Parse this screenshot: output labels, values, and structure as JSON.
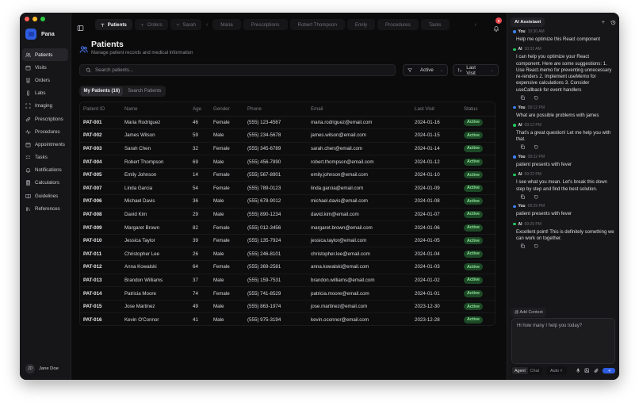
{
  "window": {
    "traffic_lights": {
      "close": "#ff5f57",
      "minimize": "#febc2e",
      "maximize": "#28c840"
    }
  },
  "sidebar": {
    "brand": "Pana",
    "items": [
      {
        "label": "Patients",
        "icon": "users-icon",
        "active": true
      },
      {
        "label": "Visits",
        "icon": "calendar-icon"
      },
      {
        "label": "Orders",
        "icon": "clipboard-icon"
      },
      {
        "label": "Labs",
        "icon": "test-tube-icon"
      },
      {
        "label": "Imaging",
        "icon": "scan-icon"
      },
      {
        "label": "Prescriptions",
        "icon": "pill-icon"
      },
      {
        "label": "Procedures",
        "icon": "activity-icon"
      },
      {
        "label": "Appointments",
        "icon": "calendar-icon"
      },
      {
        "label": "Tasks",
        "icon": "list-checks-icon"
      },
      {
        "label": "Notifications",
        "icon": "bell-icon"
      },
      {
        "label": "Calculators",
        "icon": "calculator-icon"
      },
      {
        "label": "Guidelines",
        "icon": "book-open-icon"
      },
      {
        "label": "References",
        "icon": "library-icon"
      }
    ],
    "user": {
      "initials": "JD",
      "name": "Jane Doe"
    }
  },
  "topbar": {
    "pinned_tabs": [
      {
        "label": "Patients",
        "active": true
      },
      {
        "label": "Orders"
      },
      {
        "label": "Sarah"
      }
    ],
    "tabs": [
      {
        "label": "Maria"
      },
      {
        "label": "Prescriptions"
      },
      {
        "label": "Robert Thompson"
      },
      {
        "label": "Emily"
      },
      {
        "label": "Procedures"
      },
      {
        "label": "Tasks"
      }
    ],
    "notification_count": "8"
  },
  "page": {
    "title": "Patients",
    "subtitle": "Manage patient records and medical information",
    "search_placeholder": "Search patients...",
    "status_filter": "Active",
    "sort_filter": "Last Visit",
    "segments": [
      {
        "label": "My Patients (16)",
        "active": true
      },
      {
        "label": "Search Patients"
      }
    ]
  },
  "table": {
    "columns": [
      "Patient ID",
      "Name",
      "Age",
      "Gender",
      "Phone",
      "Email",
      "Last Visit",
      "Status"
    ],
    "rows": [
      [
        "PAT-001",
        "Maria Rodriguez",
        "46",
        "Female",
        "(555) 123-4567",
        "maria.rodriguez@email.com",
        "2024-01-16",
        "Active"
      ],
      [
        "PAT-002",
        "James Wilson",
        "59",
        "Male",
        "(555) 234-5678",
        "james.wilson@email.com",
        "2024-01-15",
        "Active"
      ],
      [
        "PAT-003",
        "Sarah Chen",
        "32",
        "Female",
        "(555) 345-6789",
        "sarah.chen@email.com",
        "2024-01-14",
        "Active"
      ],
      [
        "PAT-004",
        "Robert Thompson",
        "69",
        "Male",
        "(555) 456-7890",
        "robert.thompson@email.com",
        "2024-01-12",
        "Active"
      ],
      [
        "PAT-005",
        "Emily Johnson",
        "14",
        "Female",
        "(555) 567-8901",
        "emily.johnson@email.com",
        "2024-01-10",
        "Active"
      ],
      [
        "PAT-007",
        "Linda Garcia",
        "54",
        "Female",
        "(555) 789-0123",
        "linda.garcia@email.com",
        "2024-01-09",
        "Active"
      ],
      [
        "PAT-006",
        "Michael Davis",
        "36",
        "Male",
        "(555) 678-9012",
        "michael.davis@email.com",
        "2024-01-08",
        "Active"
      ],
      [
        "PAT-008",
        "David Kim",
        "29",
        "Male",
        "(555) 890-1234",
        "david.kim@email.com",
        "2024-01-07",
        "Active"
      ],
      [
        "PAT-009",
        "Margaret Brown",
        "82",
        "Female",
        "(555) 012-3456",
        "margaret.brown@email.com",
        "2024-01-06",
        "Active"
      ],
      [
        "PAT-010",
        "Jessica Taylor",
        "39",
        "Female",
        "(555) 135-7924",
        "jessica.taylor@email.com",
        "2024-01-05",
        "Active"
      ],
      [
        "PAT-011",
        "Christopher Lee",
        "26",
        "Male",
        "(555) 246-8101",
        "christopher.lee@email.com",
        "2024-01-04",
        "Active"
      ],
      [
        "PAT-012",
        "Anna Kowalski",
        "64",
        "Female",
        "(555) 369-2581",
        "anna.kowalski@email.com",
        "2024-01-03",
        "Active"
      ],
      [
        "PAT-013",
        "Brandon Williams",
        "37",
        "Male",
        "(555) 159-7531",
        "brandon.williams@email.com",
        "2024-01-02",
        "Active"
      ],
      [
        "PAT-014",
        "Patricia Moore",
        "74",
        "Female",
        "(555) 741-8529",
        "patricia.moore@email.com",
        "2024-01-01",
        "Active"
      ],
      [
        "PAT-015",
        "Jose Martinez",
        "49",
        "Male",
        "(555) 863-1974",
        "jose.martinez@email.com",
        "2023-12-30",
        "Active"
      ],
      [
        "PAT-016",
        "Kevin O'Connor",
        "41",
        "Male",
        "(555) 975-3194",
        "kevin.oconnor@email.com",
        "2023-12-28",
        "Active"
      ]
    ]
  },
  "ai": {
    "title": "AI Assistant",
    "messages": [
      {
        "who": "You",
        "time": "10:30 AM",
        "text": "Help me optimize this React component",
        "tools": false
      },
      {
        "who": "AI",
        "time": "10:31 AM",
        "text": "I can help you optimize your React component. Here are some suggestions: 1. Use React.memo for preventing unnecessary re-renders 2. Implement useMemo for expensive calculations 3. Consider useCallback for event handlers",
        "tools": true
      },
      {
        "who": "You",
        "time": "09:12 PM",
        "text": "What are possible problems with james",
        "tools": false
      },
      {
        "who": "AI",
        "time": "09:12 PM",
        "text": "That's a great question! Let me help you with that.",
        "tools": true
      },
      {
        "who": "You",
        "time": "09:22 PM",
        "text": "patient presents with fever",
        "tools": false
      },
      {
        "who": "AI",
        "time": "09:22 PM",
        "text": "I see what you mean. Let's break this down step by step and find the best solution.",
        "tools": true
      },
      {
        "who": "You",
        "time": "09:29 PM",
        "text": "patient presents with fever",
        "tools": false
      },
      {
        "who": "AI",
        "time": "09:29 PM",
        "text": "Excellent point! This is definitely something we can work on together.",
        "tools": true
      }
    ],
    "add_context": "@ Add Context",
    "composer_placeholder": "Hi how many I help you today?",
    "modes": [
      "Agent",
      "Chat"
    ],
    "active_mode": "Agent",
    "model": "Auto",
    "colors": {
      "you_dot": "#3b82f6",
      "ai_dot": "#22c55e",
      "send": "#2f5de0"
    }
  }
}
